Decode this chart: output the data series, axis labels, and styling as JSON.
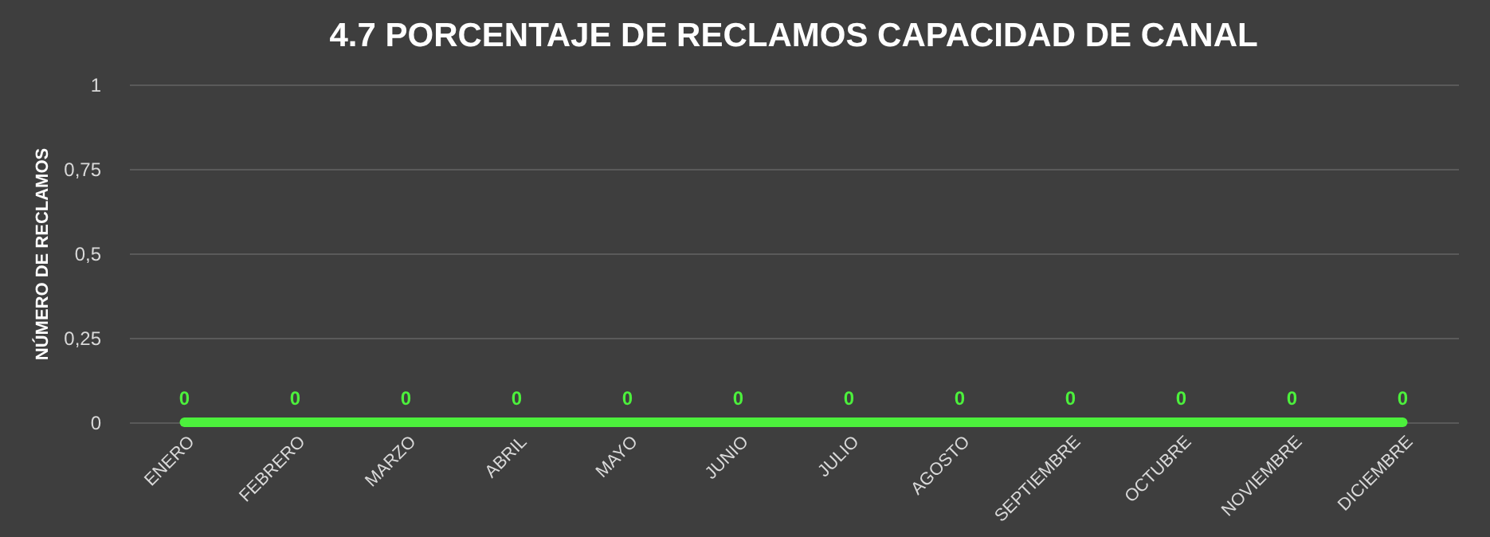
{
  "chart_data": {
    "type": "line",
    "title": "4.7 PORCENTAJE DE RECLAMOS CAPACIDAD DE CANAL",
    "ylabel": "NÚMERO DE RECLAMOS",
    "categories": [
      "ENERO",
      "FEBRERO",
      "MARZO",
      "ABRIL",
      "MAYO",
      "JUNIO",
      "JULIO",
      "AGOSTO",
      "SEPTIEMBRE",
      "OCTUBRE",
      "NOVIEMBRE",
      "DICIEMBRE"
    ],
    "series": [
      {
        "color": "#4cf03c",
        "values": [
          0,
          0,
          0,
          0,
          0,
          0,
          0,
          0,
          0,
          0,
          0,
          0
        ]
      }
    ],
    "ylim": [
      0,
      1
    ],
    "yticks": [
      0,
      {
        "value": 0.25,
        "label": "0,25"
      },
      {
        "value": 0.5,
        "label": "0,5"
      },
      {
        "value": 0.75,
        "label": "0,75"
      },
      1
    ],
    "grid": "y",
    "data_labels": true
  }
}
